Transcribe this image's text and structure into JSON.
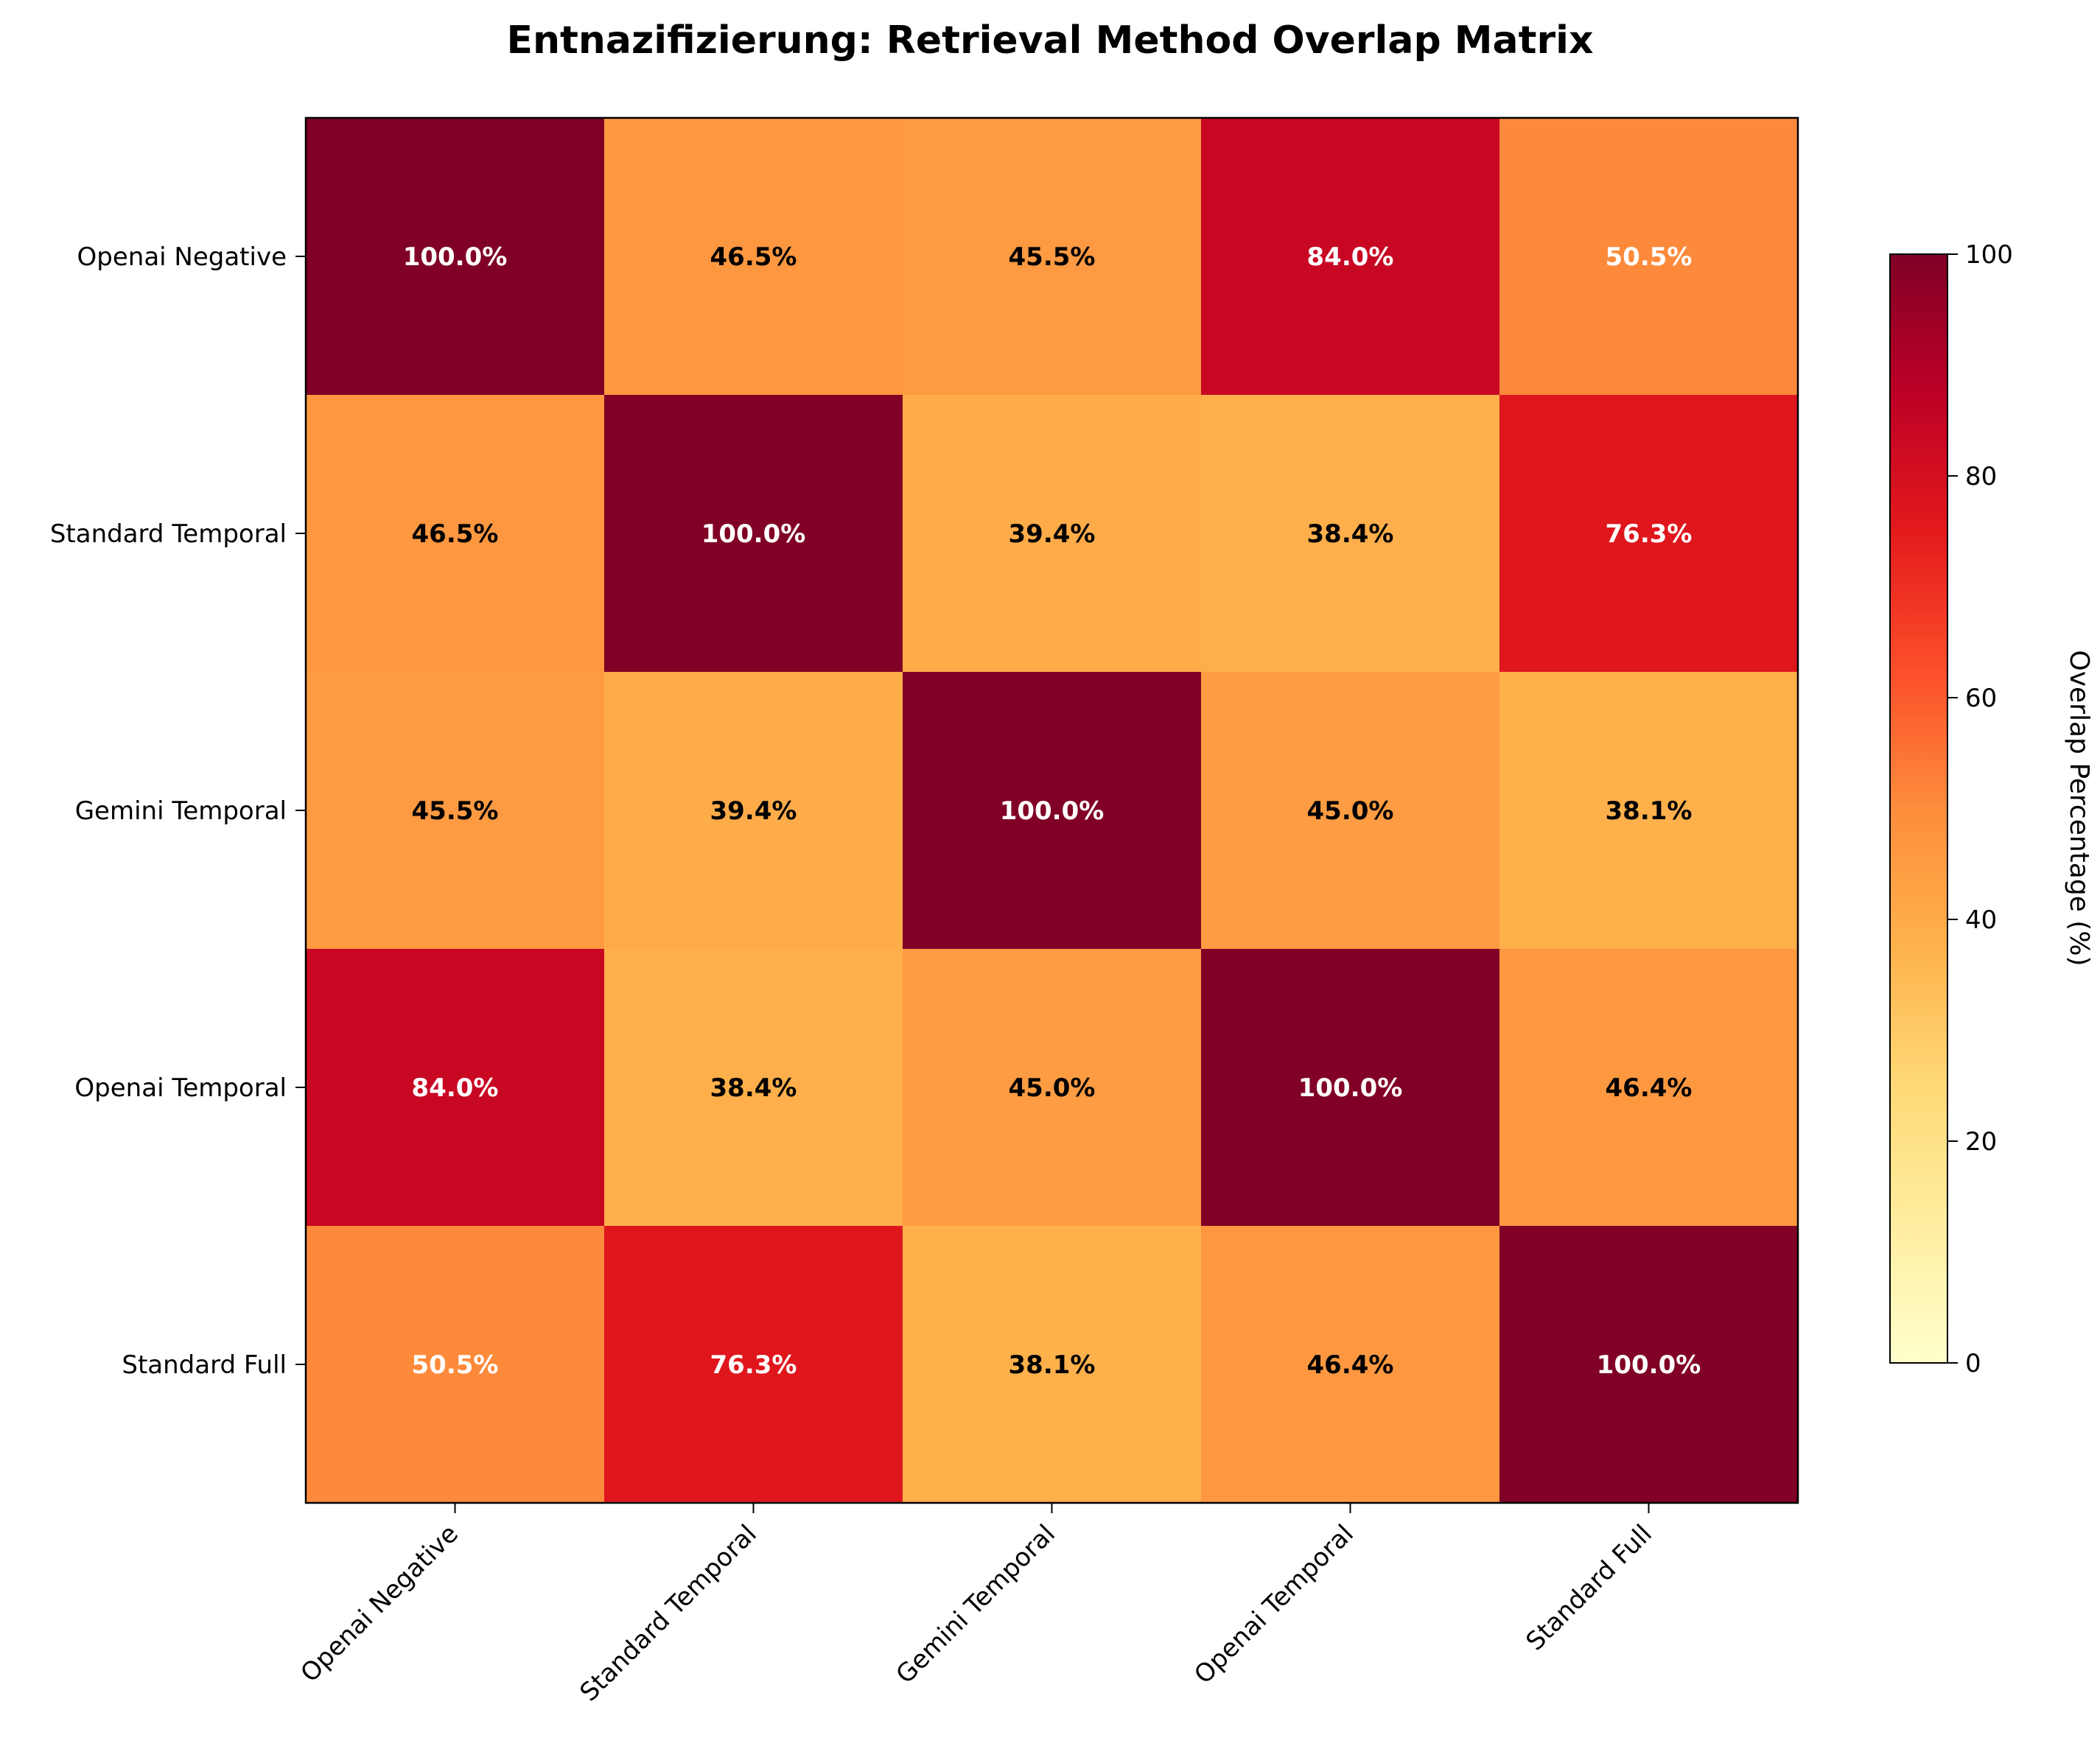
{
  "chart_data": {
    "type": "heatmap",
    "title": "Entnazifizierung: Retrieval Method Overlap Matrix",
    "row_labels": [
      "Openai Negative",
      "Standard Temporal",
      "Gemini Temporal",
      "Openai Temporal",
      "Standard Full"
    ],
    "col_labels": [
      "Openai Negative",
      "Standard Temporal",
      "Gemini Temporal",
      "Openai Temporal",
      "Standard Full"
    ],
    "values": [
      [
        100.0,
        46.5,
        45.5,
        84.0,
        50.5
      ],
      [
        46.5,
        100.0,
        39.4,
        38.4,
        76.3
      ],
      [
        45.5,
        39.4,
        100.0,
        45.0,
        38.1
      ],
      [
        84.0,
        38.4,
        45.0,
        100.0,
        46.4
      ],
      [
        50.5,
        76.3,
        38.1,
        46.4,
        100.0
      ]
    ],
    "cell_labels": [
      [
        "100.0%",
        "46.5%",
        "45.5%",
        "84.0%",
        "50.5%"
      ],
      [
        "46.5%",
        "100.0%",
        "39.4%",
        "38.4%",
        "76.3%"
      ],
      [
        "45.5%",
        "39.4%",
        "100.0%",
        "45.0%",
        "38.1%"
      ],
      [
        "84.0%",
        "38.4%",
        "45.0%",
        "100.0%",
        "46.4%"
      ],
      [
        "50.5%",
        "76.3%",
        "38.1%",
        "46.4%",
        "100.0%"
      ]
    ],
    "colormap": "YlOrRd",
    "colorbar": {
      "label": "Overlap Percentage (%)",
      "range": [
        0,
        100
      ],
      "ticks": [
        0,
        20,
        40,
        60,
        80,
        100
      ],
      "tick_labels": [
        "0",
        "20",
        "40",
        "60",
        "80",
        "100"
      ]
    },
    "grid": false
  }
}
